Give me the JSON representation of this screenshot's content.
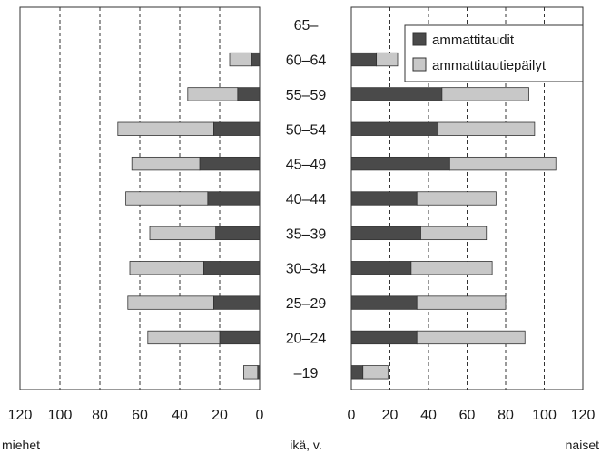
{
  "chart_data": {
    "type": "bar",
    "orientation": "horizontal",
    "layout": "population-pyramid",
    "categories": [
      "65–",
      "60–64",
      "55–59",
      "50–54",
      "45–49",
      "40–44",
      "35–39",
      "30–34",
      "25–29",
      "20–24",
      "–19"
    ],
    "panels": [
      {
        "side": "left",
        "label": "miehet",
        "xlim": [
          0,
          120
        ],
        "ticks": [
          120,
          100,
          80,
          60,
          40,
          20,
          0
        ],
        "series": [
          {
            "name": "ammattitaudit",
            "values": [
              0,
              4,
              11,
              23,
              30,
              26,
              22,
              28,
              23,
              20,
              1
            ]
          },
          {
            "name": "ammattitautiepäilyt",
            "values": [
              0,
              11,
              25,
              48,
              34,
              41,
              33,
              37,
              43,
              36,
              7
            ]
          }
        ]
      },
      {
        "side": "right",
        "label": "naiset",
        "xlim": [
          0,
          120
        ],
        "ticks": [
          0,
          20,
          40,
          60,
          80,
          100,
          120
        ],
        "series": [
          {
            "name": "ammattitaudit",
            "values": [
              0,
              13,
              47,
              45,
              51,
              34,
              36,
              31,
              34,
              34,
              6
            ]
          },
          {
            "name": "ammattitautiepäilyt",
            "values": [
              0,
              11,
              45,
              50,
              55,
              41,
              34,
              42,
              46,
              56,
              13
            ]
          }
        ]
      }
    ],
    "stacked": true,
    "category_axis_label": "ikä, v.",
    "legend": {
      "placement": "top-right",
      "entries": [
        "ammattitaudit",
        "ammattitautiepäilyt"
      ]
    },
    "colors": {
      "ammattitaudit": "#4a4a4a",
      "ammattitautiepäilyt": "#c8c8c8"
    },
    "grid": "vertical dashed"
  }
}
